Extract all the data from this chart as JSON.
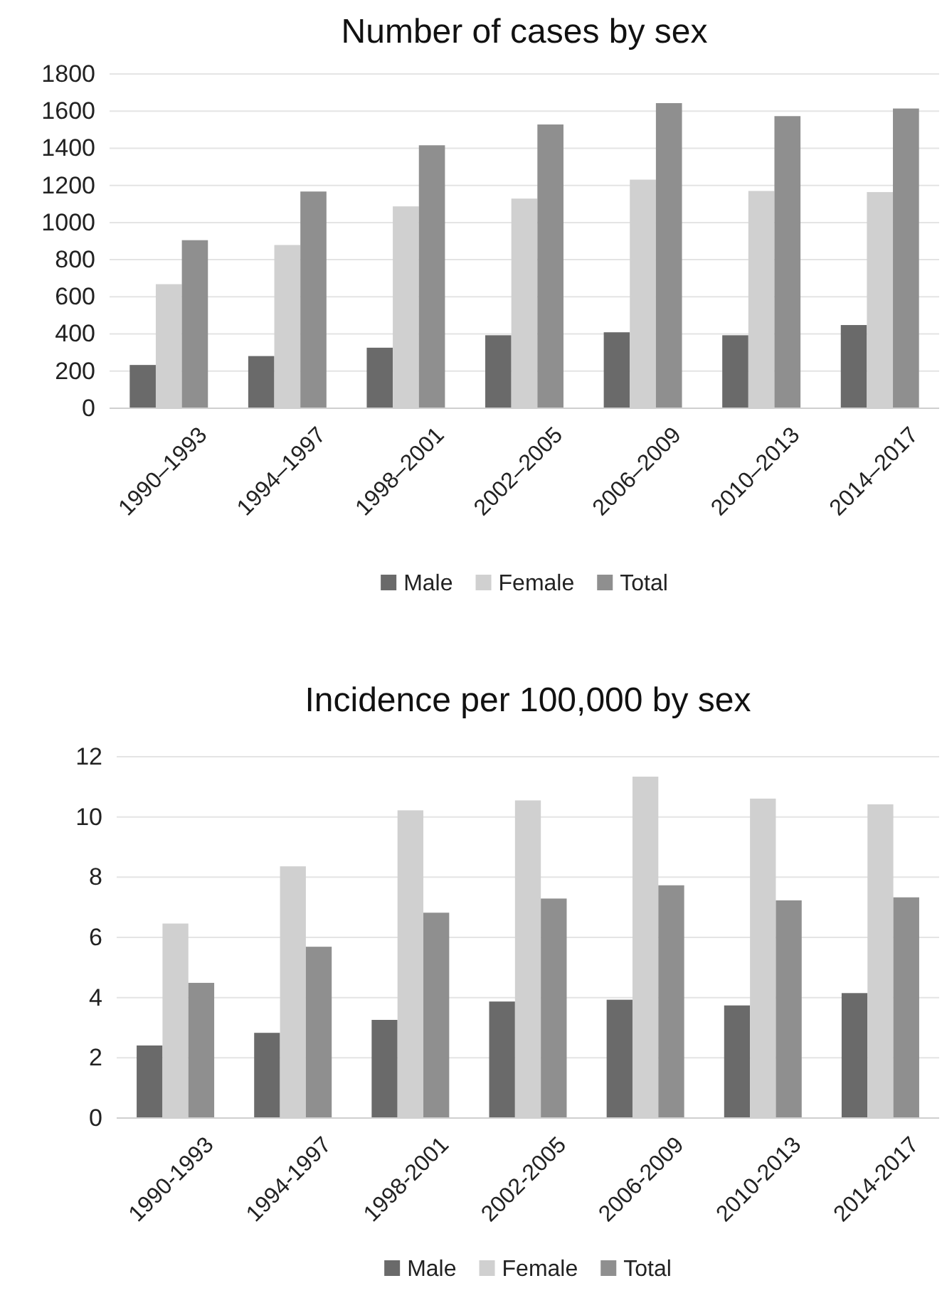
{
  "chart_data": [
    {
      "type": "bar",
      "title": "Number of cases by sex",
      "categories": [
        "1990–1993",
        "1994–1997",
        "1998–2001",
        "2002–2005",
        "2006–2009",
        "2010–2013",
        "2014–2017"
      ],
      "series": [
        {
          "name": "Male",
          "color": "#6a6a6a",
          "values": [
            233,
            281,
            326,
            393,
            409,
            393,
            448
          ]
        },
        {
          "name": "Female",
          "color": "#d0d0d0",
          "values": [
            668,
            879,
            1087,
            1129,
            1231,
            1170,
            1164
          ]
        },
        {
          "name": "Total",
          "color": "#8f8f8f",
          "values": [
            905,
            1167,
            1416,
            1528,
            1643,
            1573,
            1614
          ]
        }
      ],
      "ylim": [
        0,
        1800
      ],
      "yticks": [
        0,
        200,
        400,
        600,
        800,
        1000,
        1200,
        1400,
        1600,
        1800
      ],
      "grid": "y",
      "legend": "bottom"
    },
    {
      "type": "bar",
      "title": "Incidence per 100,000 by sex",
      "categories": [
        "1990-1993",
        "1994-1997",
        "1998-2001",
        "2002-2005",
        "2006-2009",
        "2010-2013",
        "2014-2017"
      ],
      "series": [
        {
          "name": "Male",
          "color": "#6a6a6a",
          "values": [
            2.41,
            2.83,
            3.26,
            3.87,
            3.93,
            3.74,
            4.15
          ]
        },
        {
          "name": "Female",
          "color": "#d0d0d0",
          "values": [
            6.46,
            8.36,
            10.22,
            10.55,
            11.34,
            10.61,
            10.42
          ]
        },
        {
          "name": "Total",
          "color": "#8f8f8f",
          "values": [
            4.49,
            5.69,
            6.82,
            7.29,
            7.73,
            7.23,
            7.33
          ]
        }
      ],
      "ylim": [
        0,
        12
      ],
      "yticks": [
        0,
        2,
        4,
        6,
        8,
        10,
        12
      ],
      "grid": "y",
      "legend": "bottom"
    }
  ]
}
